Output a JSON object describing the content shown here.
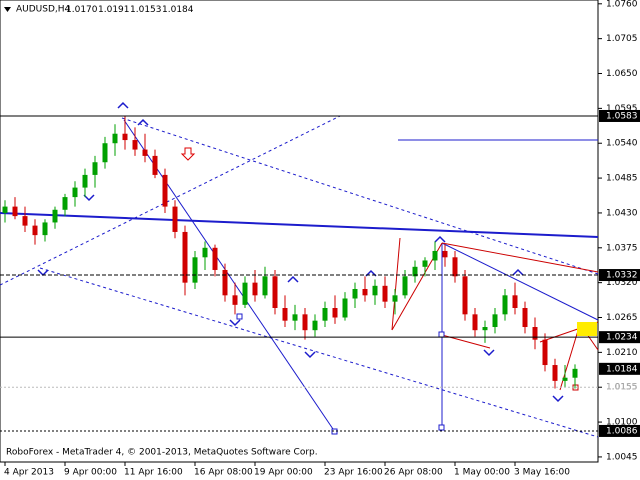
{
  "chart_data": {
    "type": "candlestick",
    "title": "AUDUSD,H4",
    "ohlc_labels": [
      "1.0170",
      "1.0191",
      "1.0153",
      "1.0184"
    ],
    "footer": "RoboForex - MetaTrader 4, © 2001-2013, MetaQuotes Software Corp.",
    "up_color": "#00a000",
    "down_color": "#d00000",
    "ylim": [
      1.0037,
      1.0766
    ],
    "yticks": [
      {
        "value": 1.076,
        "label": "1.0760"
      },
      {
        "value": 1.0705,
        "label": "1.0705"
      },
      {
        "value": 1.065,
        "label": "1.0650"
      },
      {
        "value": 1.0595,
        "label": "1.0595"
      },
      {
        "value": 1.054,
        "label": "1.0540"
      },
      {
        "value": 1.0485,
        "label": "1.0485"
      },
      {
        "value": 1.043,
        "label": "1.0430"
      },
      {
        "value": 1.0375,
        "label": "1.0375"
      },
      {
        "value": 1.032,
        "label": "1.0320"
      },
      {
        "value": 1.0265,
        "label": "1.0265"
      },
      {
        "value": 1.021,
        "label": "1.0210"
      },
      {
        "value": 1.0155,
        "label": "1.0155"
      },
      {
        "value": 1.01,
        "label": "1.0100"
      },
      {
        "value": 1.0045,
        "label": "1.0045"
      }
    ],
    "xticks": [
      {
        "value": 0,
        "label": "4 Apr 2013"
      },
      {
        "value": 6,
        "label": "9 Apr 00:00"
      },
      {
        "value": 12,
        "label": "11 Apr 16:00"
      },
      {
        "value": 19,
        "label": "16 Apr 08:00"
      },
      {
        "value": 25,
        "label": "19 Apr 00:00"
      },
      {
        "value": 32,
        "label": "23 Apr 16:00"
      },
      {
        "value": 38,
        "label": "26 Apr 08:00"
      },
      {
        "value": 45,
        "label": "1 May 00:00"
      },
      {
        "value": 51,
        "label": "3 May 16:00"
      }
    ],
    "levels": [
      {
        "value": 1.0583,
        "label": "1.0583",
        "style": "solid",
        "highlight": true
      },
      {
        "value": 1.0332,
        "label": "1.0332",
        "style": "dashed",
        "highlight": true
      },
      {
        "value": 1.0234,
        "label": "1.0234",
        "style": "solid",
        "highlight": true
      },
      {
        "value": 1.0184,
        "label": "1.0184",
        "style": "none",
        "highlight": true
      },
      {
        "value": 1.0155,
        "label": "1.0155",
        "style": "dotted",
        "highlight": false
      },
      {
        "value": 1.0086,
        "label": "1.0086",
        "style": "dotted",
        "highlight": true
      }
    ],
    "open": [
      1.043,
      1.044,
      1.0425,
      1.041,
      1.0395,
      1.0415,
      1.0435,
      1.0455,
      1.047,
      1.049,
      1.051,
      1.054,
      1.0555,
      1.0545,
      1.053,
      1.052,
      1.049,
      1.044,
      1.04,
      1.032,
      1.036,
      1.0375,
      1.034,
      1.03,
      1.0285,
      1.032,
      1.03,
      1.033,
      1.028,
      1.026,
      1.027,
      1.0245,
      1.026,
      1.028,
      1.0265,
      1.0295,
      1.031,
      1.03,
      1.0315,
      1.029,
      1.03,
      1.033,
      1.0345,
      1.0355,
      1.037,
      1.036,
      1.033,
      1.027,
      1.0245,
      1.025,
      1.027,
      1.03,
      1.028,
      1.025,
      1.023,
      1.019,
      1.0165,
      1.017
    ],
    "high": [
      1.045,
      1.0455,
      1.044,
      1.042,
      1.042,
      1.044,
      1.046,
      1.048,
      1.05,
      1.052,
      1.055,
      1.057,
      1.0583,
      1.0565,
      1.0555,
      1.053,
      1.05,
      1.045,
      1.041,
      1.037,
      1.0385,
      1.038,
      1.035,
      1.032,
      1.033,
      1.034,
      1.0345,
      1.034,
      1.03,
      1.0285,
      1.028,
      1.027,
      1.029,
      1.03,
      1.0305,
      1.032,
      1.033,
      1.0325,
      1.033,
      1.031,
      1.034,
      1.0355,
      1.036,
      1.0385,
      1.038,
      1.037,
      1.034,
      1.028,
      1.026,
      1.028,
      1.031,
      1.032,
      1.029,
      1.0265,
      1.024,
      1.02,
      1.019,
      1.0191
    ],
    "low": [
      1.0415,
      1.042,
      1.04,
      1.038,
      1.0385,
      1.0405,
      1.0425,
      1.044,
      1.0455,
      1.047,
      1.05,
      1.052,
      1.053,
      1.052,
      1.051,
      1.0485,
      1.043,
      1.039,
      1.03,
      1.031,
      1.034,
      1.033,
      1.029,
      1.027,
      1.028,
      1.029,
      1.0295,
      1.027,
      1.025,
      1.0245,
      1.023,
      1.0235,
      1.025,
      1.0255,
      1.026,
      1.028,
      1.029,
      1.0285,
      1.028,
      1.027,
      1.0295,
      1.032,
      1.033,
      1.034,
      1.0345,
      1.032,
      1.026,
      1.0235,
      1.0225,
      1.024,
      1.026,
      1.027,
      1.024,
      1.0215,
      1.018,
      1.0153,
      1.0155,
      1.0153
    ],
    "close": [
      1.044,
      1.0425,
      1.041,
      1.0395,
      1.0415,
      1.0435,
      1.0455,
      1.047,
      1.049,
      1.051,
      1.054,
      1.0555,
      1.0545,
      1.053,
      1.052,
      1.049,
      1.044,
      1.04,
      1.032,
      1.036,
      1.0375,
      1.034,
      1.03,
      1.0285,
      1.032,
      1.03,
      1.033,
      1.028,
      1.026,
      1.027,
      1.0245,
      1.026,
      1.028,
      1.0265,
      1.0295,
      1.031,
      1.03,
      1.0315,
      1.029,
      1.03,
      1.033,
      1.0345,
      1.0355,
      1.037,
      1.036,
      1.033,
      1.027,
      1.0245,
      1.025,
      1.027,
      1.03,
      1.028,
      1.025,
      1.023,
      1.019,
      1.0165,
      1.017,
      1.0184
    ]
  }
}
